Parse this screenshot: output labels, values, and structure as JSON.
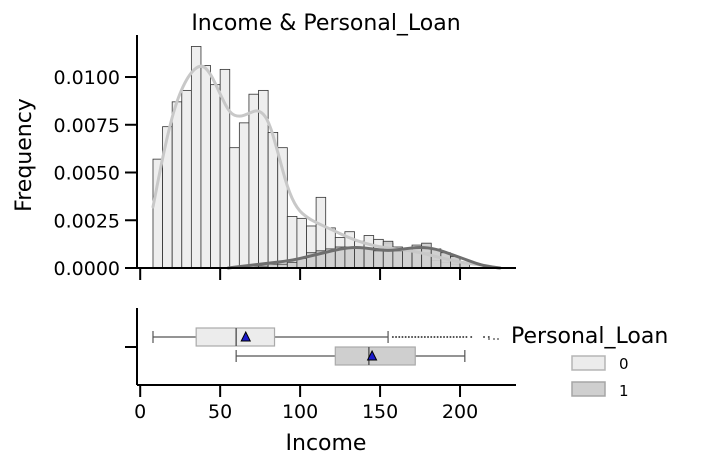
{
  "chart_data": {
    "type": "histogram+boxplot",
    "title": "Income & Personal_Loan",
    "xlabel": "Income",
    "ylabel": "Frequency",
    "xlim": [
      -2,
      235
    ],
    "ylim": [
      0,
      0.0122
    ],
    "x_ticks": [
      0,
      50,
      100,
      150,
      200
    ],
    "y_ticks": [
      "0.0000",
      "0.0025",
      "0.0050",
      "0.0075",
      "0.0100"
    ],
    "y_tick_values": [
      0,
      0.0025,
      0.005,
      0.0075,
      0.01
    ],
    "legend": {
      "title": "Personal_Loan",
      "placement": "right",
      "entries": [
        {
          "label": "0",
          "color": "#ececec"
        },
        {
          "label": "1",
          "color": "#cfcfcf"
        }
      ]
    },
    "histogram": {
      "bin_width": 6,
      "series": [
        {
          "name": "0",
          "color": "#eeeeee",
          "bin_starts": [
            8,
            14,
            20,
            26,
            32,
            38,
            44,
            50,
            56,
            62,
            68,
            74,
            80,
            86,
            92,
            98,
            104,
            110,
            116,
            122,
            128,
            134,
            140,
            146,
            152,
            158,
            164,
            170,
            176,
            182,
            188,
            194
          ],
          "densities": [
            0.0057,
            0.0074,
            0.0087,
            0.0093,
            0.0116,
            0.0106,
            0.0096,
            0.0104,
            0.0063,
            0.0076,
            0.0091,
            0.0093,
            0.0071,
            0.0063,
            0.0027,
            0.0026,
            0.0022,
            0.0037,
            0.0021,
            0.0016,
            0.0019,
            0.0014,
            0.0017,
            0.0015,
            0.0013,
            0.0011,
            0.001,
            0.0012,
            0.0008,
            0.0004,
            0.0003,
            0.0002
          ]
        },
        {
          "name": "1",
          "color": "#cfcfcf",
          "bin_starts": [
            62,
            68,
            74,
            80,
            86,
            92,
            98,
            104,
            110,
            116,
            122,
            128,
            134,
            140,
            146,
            152,
            158,
            164,
            170,
            176,
            182,
            188,
            194,
            200
          ],
          "densities": [
            0.0001,
            0.0001,
            0.0001,
            0.0002,
            0.0002,
            0.0003,
            0.0005,
            0.0008,
            0.0009,
            0.001,
            0.0011,
            0.0011,
            0.0011,
            0.001,
            0.0009,
            0.0014,
            0.0009,
            0.001,
            0.0011,
            0.0013,
            0.001,
            0.0008,
            0.0006,
            0.0003
          ]
        }
      ]
    },
    "kde": [
      {
        "name": "0",
        "color": "#c8c8c8",
        "x": [
          8,
          15,
          22,
          30,
          38,
          44,
          50,
          56,
          62,
          68,
          74,
          80,
          86,
          92,
          98,
          105,
          112,
          120,
          130,
          140,
          150,
          160,
          170,
          180,
          190,
          200,
          210,
          218,
          224
        ],
        "y": [
          0.0032,
          0.0062,
          0.0086,
          0.0101,
          0.0107,
          0.0102,
          0.0091,
          0.0081,
          0.0079,
          0.0081,
          0.0083,
          0.0078,
          0.0061,
          0.0042,
          0.0031,
          0.0026,
          0.0023,
          0.002,
          0.0016,
          0.0013,
          0.0011,
          0.001,
          0.0009,
          0.0007,
          0.0005,
          0.0003,
          0.0002,
          0.0001,
          0.0
        ]
      },
      {
        "name": "1",
        "color": "#6e6e6e",
        "x": [
          55,
          65,
          75,
          85,
          95,
          105,
          115,
          125,
          135,
          145,
          155,
          165,
          175,
          185,
          195,
          205,
          215,
          225
        ],
        "y": [
          0.0,
          0.0001,
          0.0002,
          0.0003,
          0.0004,
          0.0006,
          0.0008,
          0.001,
          0.0011,
          0.001,
          0.0009,
          0.001,
          0.0011,
          0.001,
          0.0007,
          0.0004,
          0.0001,
          0.0
        ]
      }
    ],
    "boxplot": [
      {
        "name": "0",
        "color": "#ececec",
        "whisker_low": 8,
        "q1": 35,
        "median": 60,
        "q3": 84,
        "whisker_high": 155,
        "mean": 66,
        "outliers": [
          158,
          160,
          162,
          164,
          166,
          168,
          170,
          172,
          174,
          176,
          178,
          180,
          182,
          184,
          186,
          188,
          190,
          192,
          194,
          196,
          198,
          200,
          202,
          204,
          207,
          215,
          218
        ]
      },
      {
        "name": "1",
        "color": "#cfcfcf",
        "whisker_low": 60,
        "q1": 122,
        "median": 143,
        "q3": 172,
        "whisker_high": 203,
        "mean": 145,
        "outliers": []
      }
    ]
  }
}
